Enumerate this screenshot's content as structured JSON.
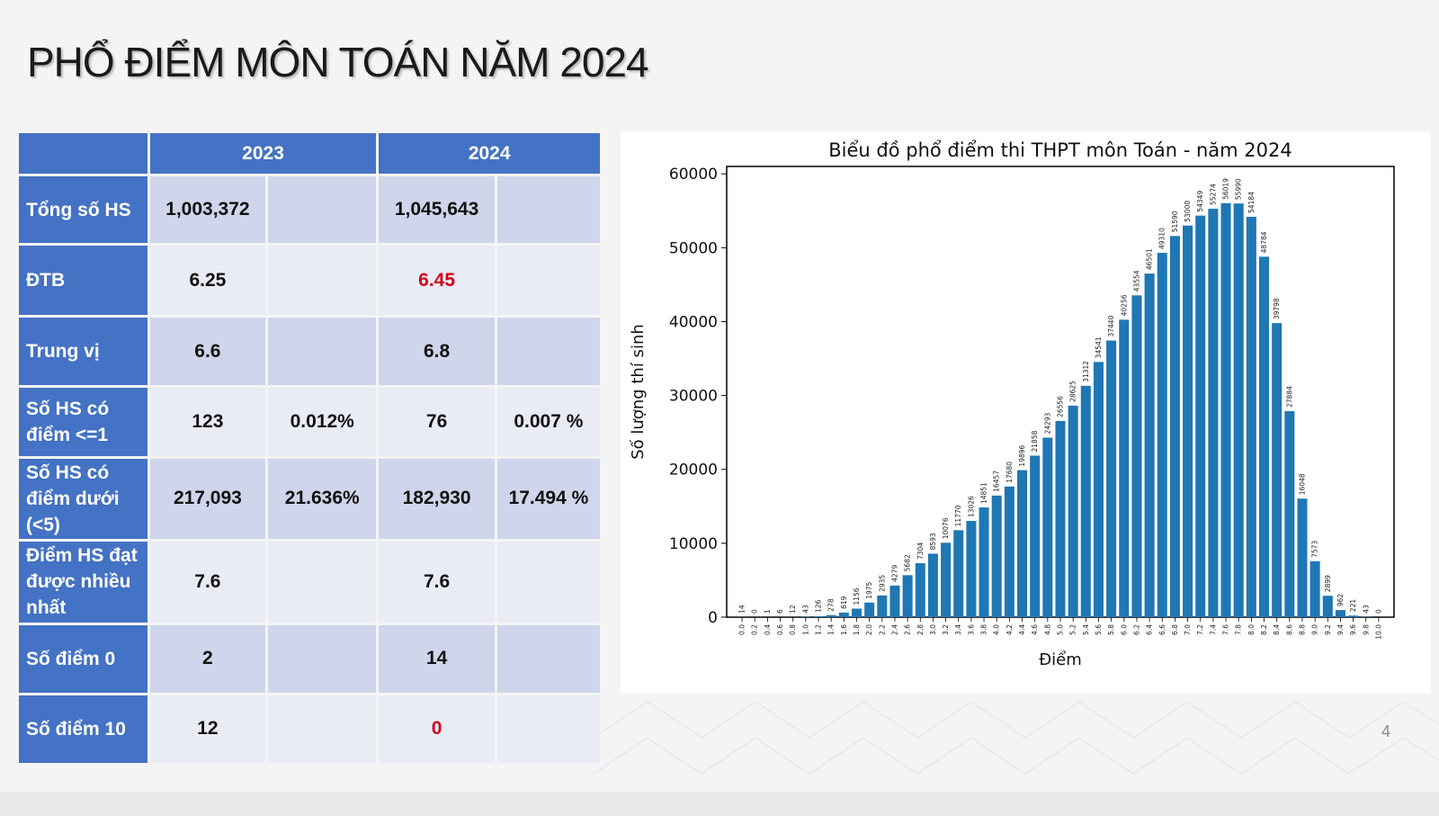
{
  "slide": {
    "title": "PHỔ ĐIỂM MÔN TOÁN NĂM 2024",
    "page_number": "4"
  },
  "table": {
    "columns": [
      "2023",
      "2024"
    ],
    "rows": [
      {
        "label": "Tổng số HS",
        "c2023": "1,003,372",
        "p2023": "",
        "c2024": "1,045,643",
        "p2024": "",
        "highlight_2024": false
      },
      {
        "label": "ĐTB",
        "c2023": "6.25",
        "p2023": "",
        "c2024": "6.45",
        "p2024": "",
        "highlight_2024": true
      },
      {
        "label": "Trung vị",
        "c2023": "6.6",
        "p2023": "",
        "c2024": "6.8",
        "p2024": "",
        "highlight_2024": false
      },
      {
        "label": "Số HS có điểm <=1",
        "c2023": "123",
        "p2023": "0.012%",
        "c2024": "76",
        "p2024": "0.007 %",
        "highlight_2024": false
      },
      {
        "label": "Số HS có điểm dưới (<5)",
        "c2023": "217,093",
        "p2023": "21.636%",
        "c2024": "182,930",
        "p2024": "17.494 %",
        "highlight_2024": false
      },
      {
        "label": "Điểm HS đạt được nhiều nhất",
        "c2023": "7.6",
        "p2023": "",
        "c2024": "7.6",
        "p2024": "",
        "highlight_2024": false
      },
      {
        "label": "Số điểm 0",
        "c2023": "2",
        "p2023": "",
        "c2024": "14",
        "p2024": "",
        "highlight_2024": false
      },
      {
        "label": "Số điểm 10",
        "c2023": "12",
        "p2023": "",
        "c2024": "0",
        "p2024": "",
        "highlight_2024": true
      }
    ]
  },
  "colors": {
    "header_blue": "#4472c4",
    "row_dark": "#cfd5ea",
    "row_light": "#e9ebf5",
    "highlight_red": "#d0021b",
    "bar_blue": "#1f77b4"
  },
  "chart_data": {
    "type": "bar",
    "title": "Biểu đồ phổ điểm thi THPT môn Toán - năm 2024",
    "xlabel": "Điểm",
    "ylabel": "Số lượng thí sinh",
    "ylim": [
      0,
      61000
    ],
    "yticks": [
      0,
      10000,
      20000,
      30000,
      40000,
      50000,
      60000
    ],
    "grid": false,
    "categories": [
      "0.0",
      "0.2",
      "0.4",
      "0.6",
      "0.8",
      "1.0",
      "1.2",
      "1.4",
      "1.6",
      "1.8",
      "2.0",
      "2.2",
      "2.4",
      "2.6",
      "2.8",
      "3.0",
      "3.2",
      "3.4",
      "3.6",
      "3.8",
      "4.0",
      "4.2",
      "4.4",
      "4.6",
      "4.8",
      "5.0",
      "5.2",
      "5.4",
      "5.6",
      "5.8",
      "6.0",
      "6.2",
      "6.4",
      "6.6",
      "6.8",
      "7.0",
      "7.2",
      "7.4",
      "7.6",
      "7.8",
      "8.0",
      "8.2",
      "8.4",
      "8.6",
      "8.8",
      "9.0",
      "9.2",
      "9.4",
      "9.6",
      "9.8",
      "10.0"
    ],
    "values": [
      14,
      0,
      1,
      6,
      12,
      43,
      126,
      278,
      619,
      1156,
      1975,
      2935,
      4279,
      5682,
      7304,
      8593,
      10076,
      11770,
      13026,
      14851,
      16457,
      17680,
      19896,
      21858,
      24293,
      26556,
      28625,
      31312,
      34541,
      37440,
      40256,
      43554,
      46501,
      49310,
      51590,
      53000,
      54349,
      55274,
      56019,
      55990,
      54184,
      48784,
      39798,
      27884,
      16048,
      7573,
      2899,
      962,
      221,
      43,
      0
    ]
  }
}
